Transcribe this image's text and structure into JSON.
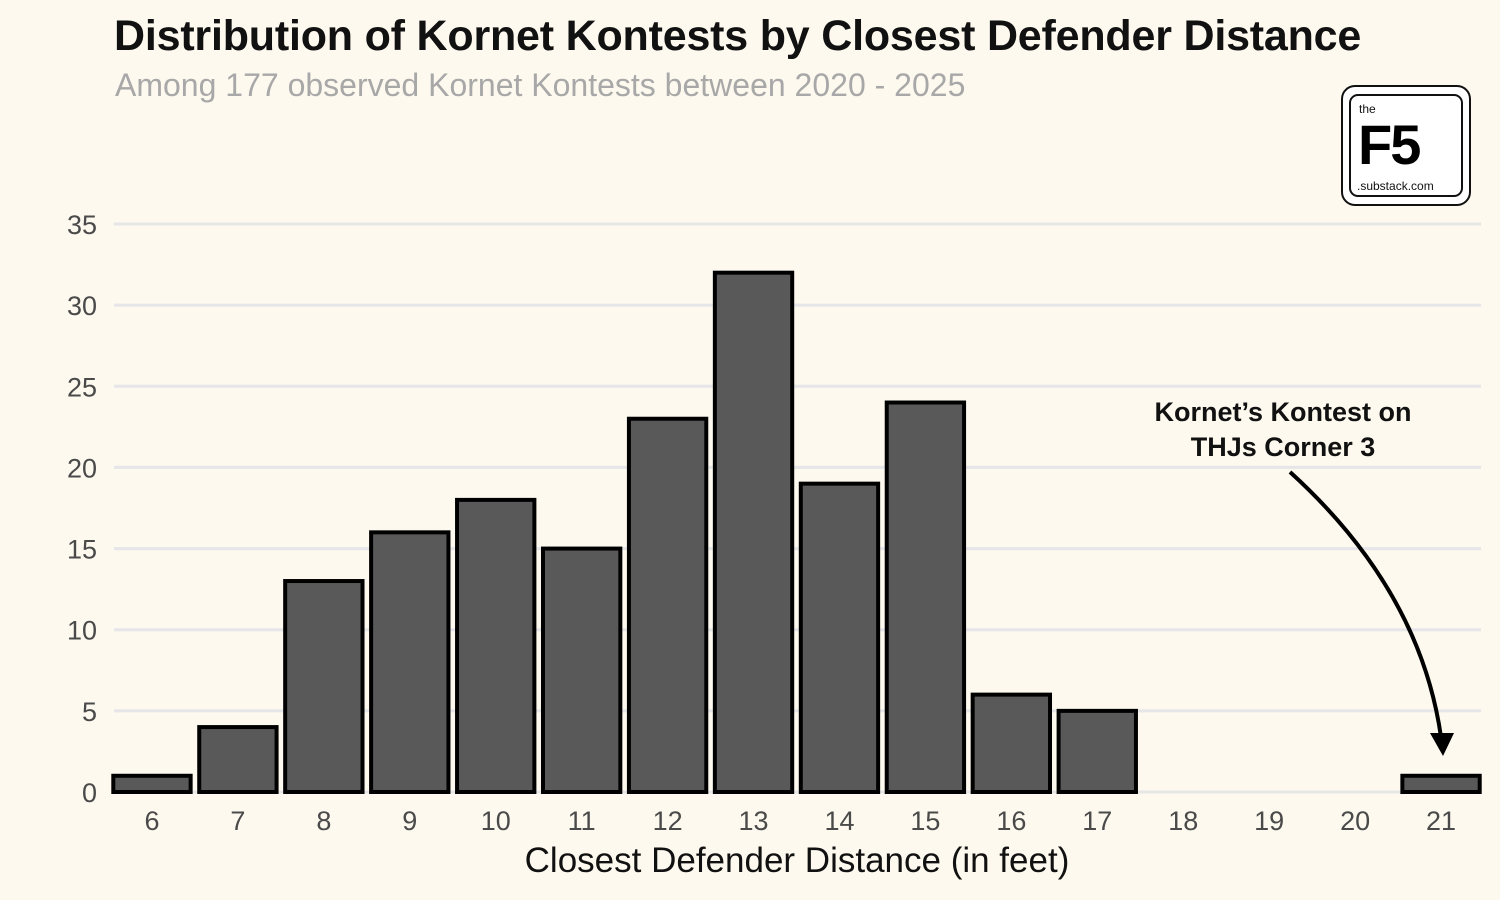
{
  "title": "Distribution of Kornet Kontests by Closest Defender Distance",
  "subtitle": "Among 177 observed Kornet Kontests between 2020 - 2025",
  "logo": {
    "top_text": "the",
    "main_text": "F5",
    "bottom_text": ".substack.com"
  },
  "colors": {
    "background": "#fdf9ee",
    "bar_fill": "#595959",
    "bar_stroke": "#000000",
    "grid": "#e6e6e8"
  },
  "chart_data": {
    "type": "bar",
    "title": "Distribution of Kornet Kontests by Closest Defender Distance",
    "subtitle": "Among 177 observed Kornet Kontests between 2020 - 2025",
    "xlabel": "Closest Defender Distance (in feet)",
    "ylabel": "",
    "categories": [
      "6",
      "7",
      "8",
      "9",
      "10",
      "11",
      "12",
      "13",
      "14",
      "15",
      "16",
      "17",
      "18",
      "19",
      "20",
      "21"
    ],
    "values": [
      1,
      4,
      13,
      16,
      18,
      15,
      23,
      32,
      19,
      24,
      6,
      5,
      0,
      0,
      0,
      1
    ],
    "ylim": [
      0,
      35
    ],
    "yticks": [
      "0",
      "5",
      "10",
      "15",
      "20",
      "25",
      "30",
      "35"
    ],
    "grid": "horizontal",
    "annotation": {
      "lines": [
        "Kornet’s Kontest on",
        "THJs Corner 3"
      ],
      "points_to_category": "21"
    }
  }
}
